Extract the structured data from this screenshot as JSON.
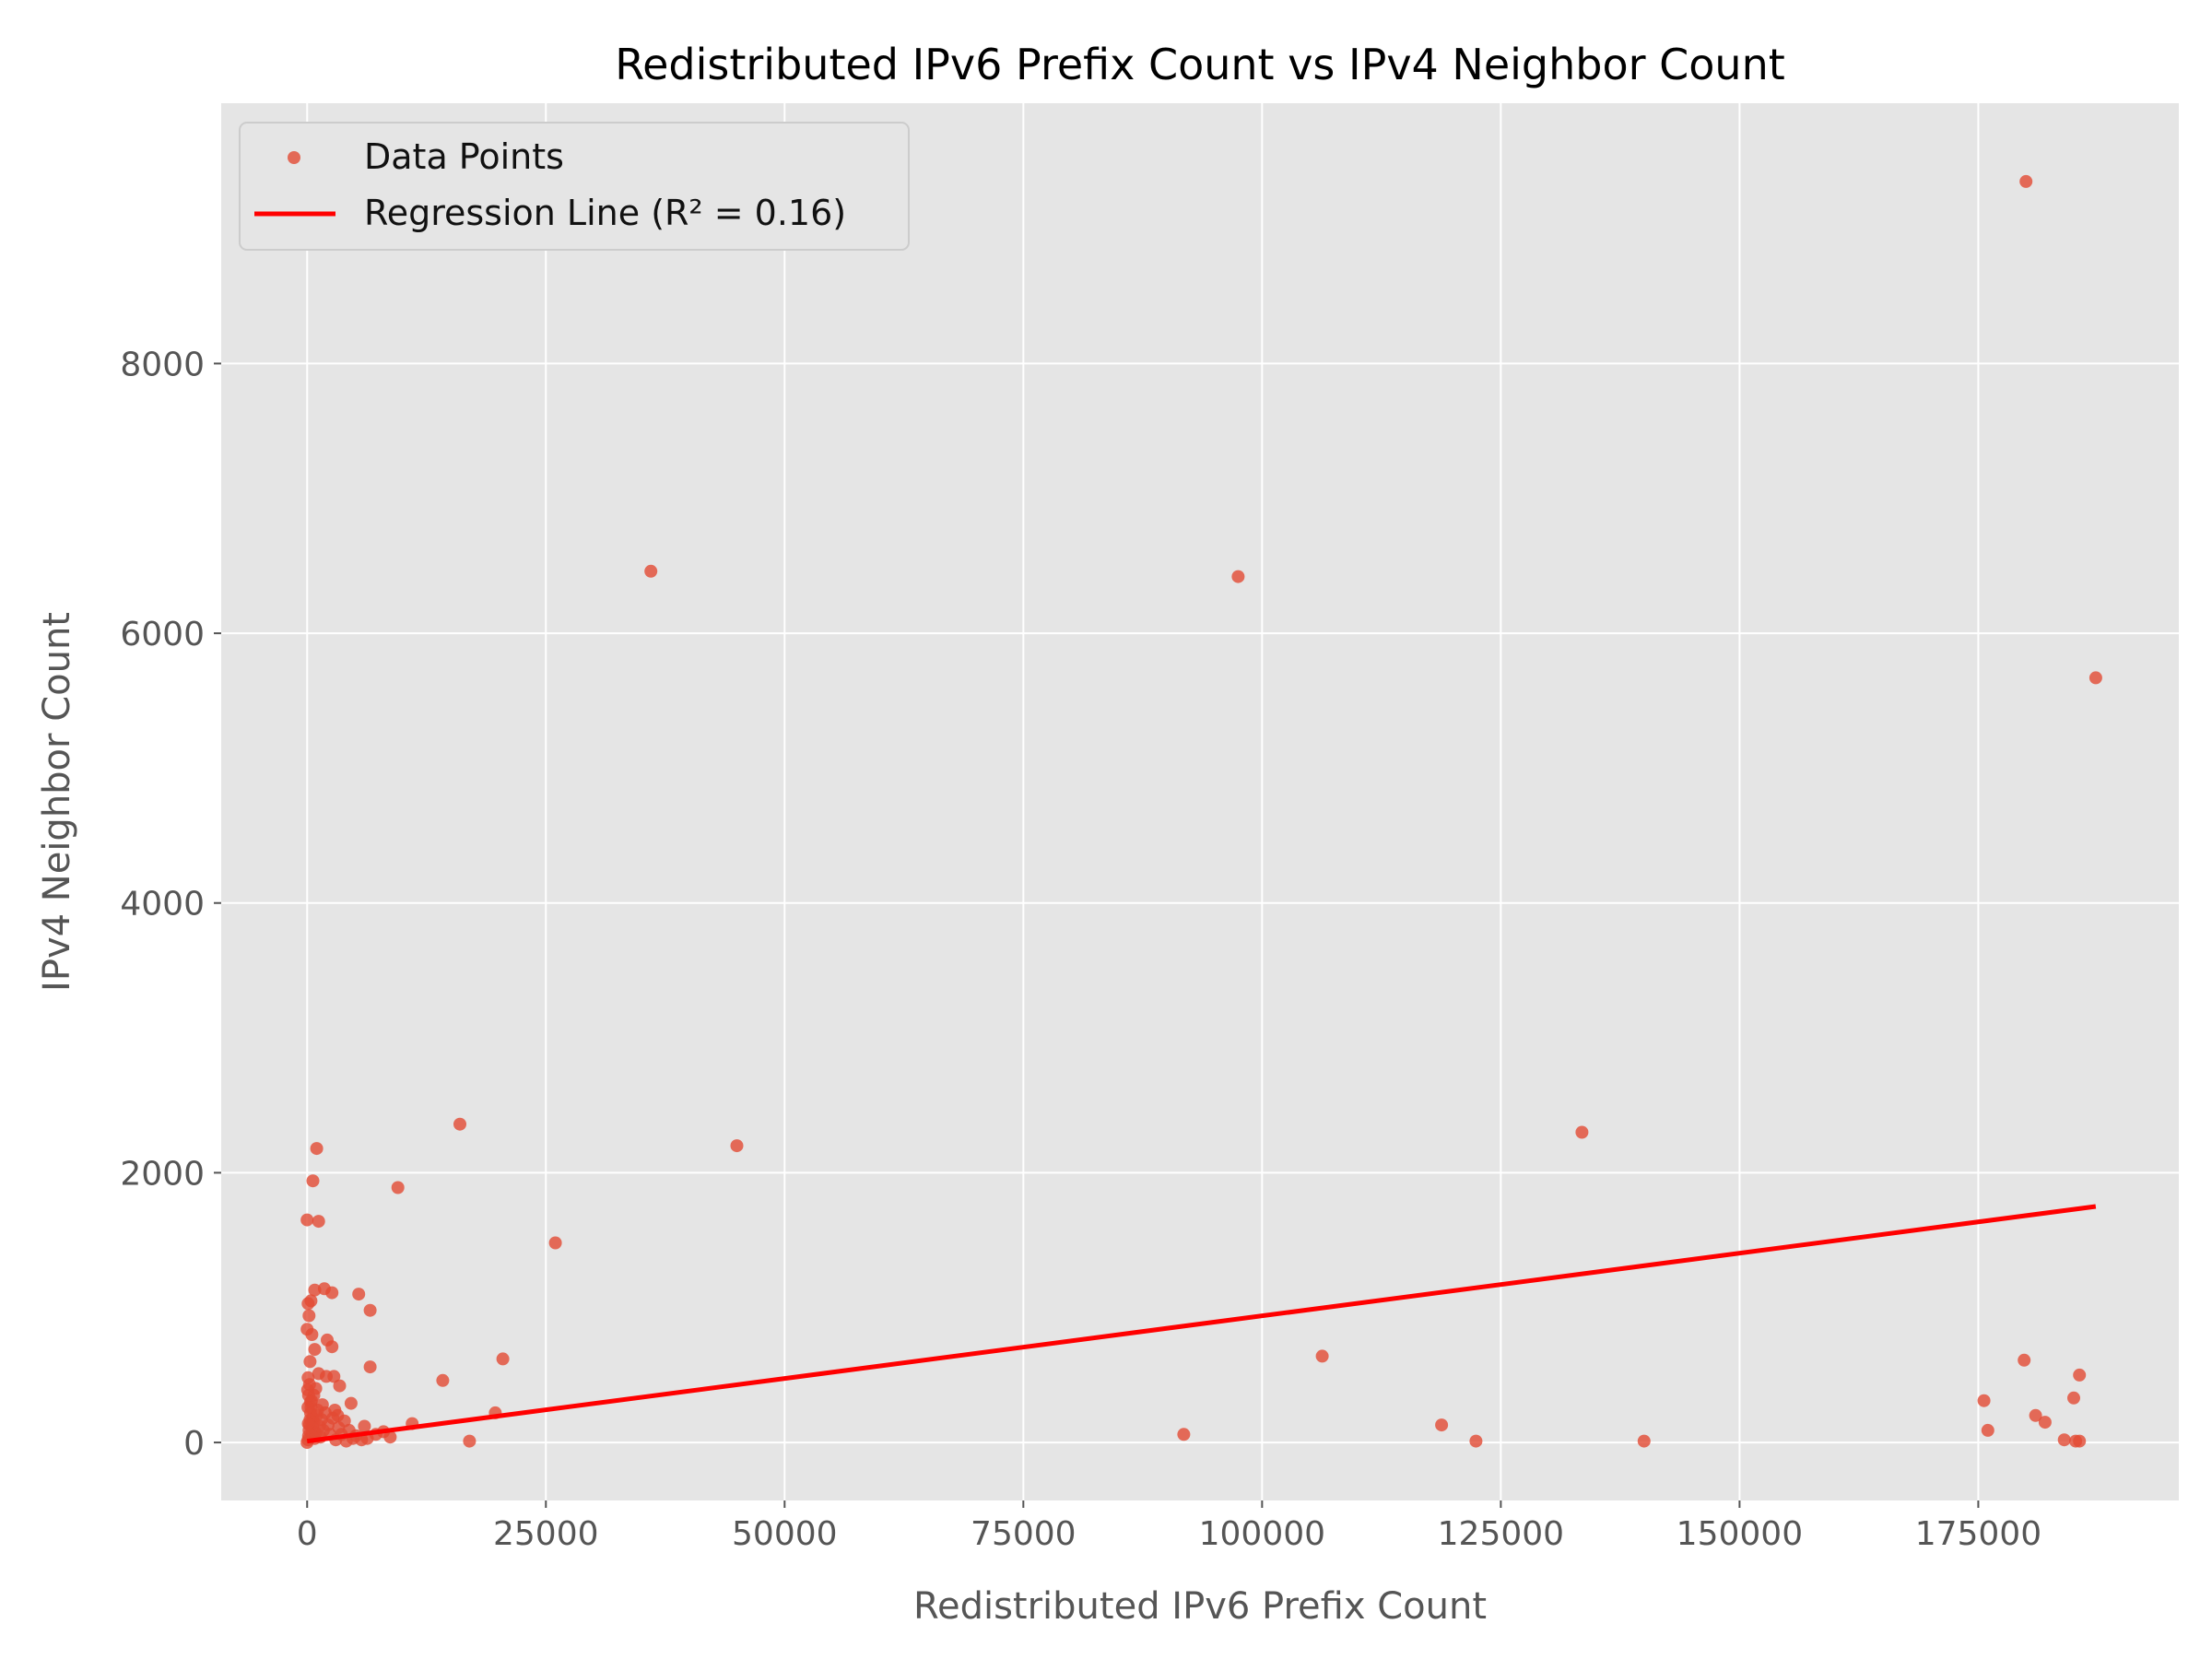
{
  "chart_data": {
    "type": "scatter",
    "title": "Redistributed IPv6 Prefix Count vs IPv4 Neighbor Count",
    "xlabel": "Redistributed IPv6 Prefix Count",
    "ylabel": "IPv4 Neighbor Count",
    "xlim": [
      -9000,
      196000
    ],
    "ylim": [
      -430,
      9930
    ],
    "xticks": [
      0,
      25000,
      50000,
      75000,
      100000,
      125000,
      150000,
      175000
    ],
    "xtick_labels": [
      "0",
      "25000",
      "50000",
      "75000",
      "100000",
      "125000",
      "150000",
      "175000"
    ],
    "yticks": [
      0,
      2000,
      4000,
      6000,
      8000
    ],
    "ytick_labels": [
      "0",
      "2000",
      "4000",
      "6000",
      "8000"
    ],
    "grid": true,
    "legend_position": "top-left",
    "colors": {
      "points": "#E24A33",
      "regression": "#FF0000",
      "plot_background": "#E5E5E5",
      "grid": "#FFFFFF"
    },
    "legend": [
      {
        "label": "Data Points",
        "kind": "marker"
      },
      {
        "label": "Regression Line (R² = 0.16)",
        "kind": "line"
      }
    ],
    "series": [
      {
        "name": "Data Points",
        "points": [
          [
            180000,
            9350
          ],
          [
            36000,
            6460
          ],
          [
            97500,
            6420
          ],
          [
            187300,
            5670
          ],
          [
            16000,
            2360
          ],
          [
            133500,
            2300
          ],
          [
            45000,
            2200
          ],
          [
            1000,
            2180
          ],
          [
            600,
            1940
          ],
          [
            9500,
            1890
          ],
          [
            0,
            1650
          ],
          [
            1200,
            1640
          ],
          [
            26000,
            1480
          ],
          [
            1800,
            1140
          ],
          [
            800,
            1130
          ],
          [
            2600,
            1110
          ],
          [
            5400,
            1100
          ],
          [
            400,
            1050
          ],
          [
            100,
            1030
          ],
          [
            6600,
            980
          ],
          [
            200,
            940
          ],
          [
            0,
            840
          ],
          [
            500,
            800
          ],
          [
            2100,
            760
          ],
          [
            2600,
            710
          ],
          [
            800,
            690
          ],
          [
            20500,
            620
          ],
          [
            106300,
            640
          ],
          [
            179800,
            610
          ],
          [
            300,
            600
          ],
          [
            6600,
            560
          ],
          [
            1200,
            510
          ],
          [
            185600,
            500
          ],
          [
            100,
            480
          ],
          [
            2000,
            490
          ],
          [
            2800,
            490
          ],
          [
            14200,
            460
          ],
          [
            3400,
            420
          ],
          [
            900,
            400
          ],
          [
            185000,
            330
          ],
          [
            700,
            350
          ],
          [
            4600,
            290
          ],
          [
            175600,
            310
          ],
          [
            1600,
            280
          ],
          [
            2900,
            240
          ],
          [
            19700,
            220
          ],
          [
            3200,
            200
          ],
          [
            181000,
            200
          ],
          [
            600,
            180
          ],
          [
            3900,
            160
          ],
          [
            182000,
            150
          ],
          [
            11000,
            140
          ],
          [
            6000,
            120
          ],
          [
            118800,
            130
          ],
          [
            176000,
            90
          ],
          [
            8000,
            80
          ],
          [
            91800,
            60
          ],
          [
            8700,
            40
          ],
          [
            4800,
            30
          ],
          [
            17000,
            10
          ],
          [
            122400,
            10
          ],
          [
            140000,
            10
          ],
          [
            184000,
            20
          ],
          [
            185200,
            10
          ],
          [
            185600,
            10
          ],
          [
            0,
            0
          ],
          [
            100,
            20
          ],
          [
            150,
            50
          ],
          [
            200,
            90
          ],
          [
            250,
            130
          ],
          [
            300,
            170
          ],
          [
            350,
            220
          ],
          [
            400,
            260
          ],
          [
            450,
            310
          ],
          [
            500,
            60
          ],
          [
            600,
            110
          ],
          [
            700,
            150
          ],
          [
            800,
            30
          ],
          [
            900,
            70
          ],
          [
            1000,
            200
          ],
          [
            1100,
            240
          ],
          [
            1300,
            120
          ],
          [
            1400,
            40
          ],
          [
            1500,
            170
          ],
          [
            1700,
            90
          ],
          [
            1900,
            220
          ],
          [
            2200,
            130
          ],
          [
            2400,
            60
          ],
          [
            2700,
            180
          ],
          [
            3000,
            20
          ],
          [
            3300,
            110
          ],
          [
            3600,
            60
          ],
          [
            4100,
            10
          ],
          [
            4400,
            90
          ],
          [
            5100,
            50
          ],
          [
            5700,
            20
          ],
          [
            6300,
            30
          ],
          [
            7200,
            60
          ],
          [
            50,
            390
          ],
          [
            150,
            350
          ],
          [
            250,
            430
          ],
          [
            350,
            300
          ],
          [
            120,
            140
          ],
          [
            80,
            260
          ]
        ]
      },
      {
        "name": "Regression Line (R² = 0.16)",
        "type": "line",
        "x": [
          0,
          187300
        ],
        "y": [
          10,
          1750
        ]
      }
    ]
  }
}
